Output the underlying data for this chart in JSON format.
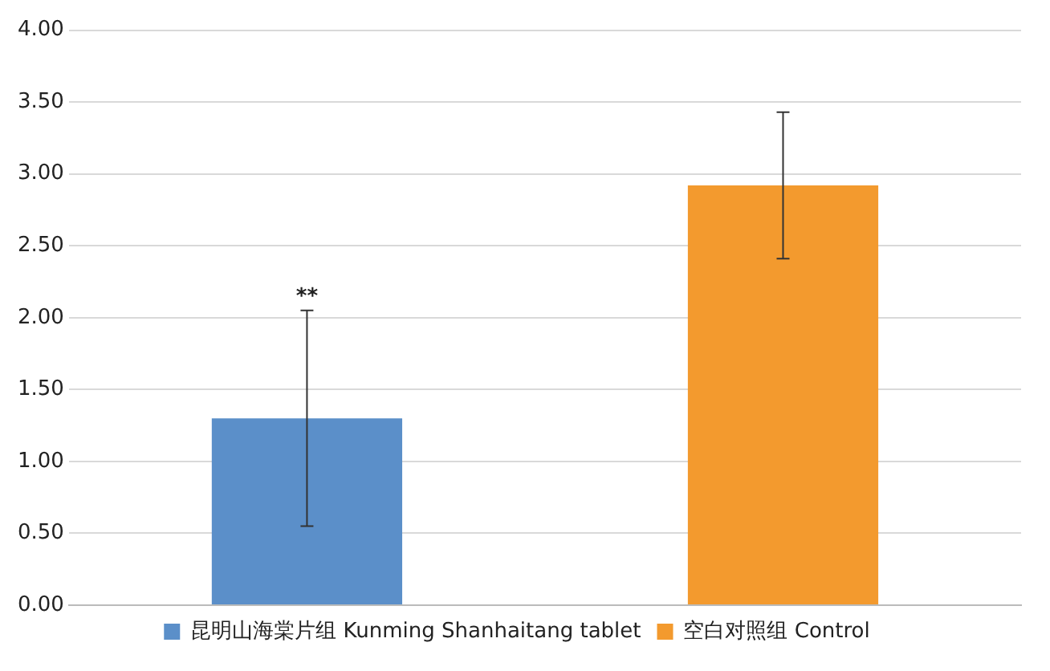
{
  "chart_data": {
    "type": "bar",
    "categories": [
      null
    ],
    "series": [
      {
        "name": "昆明山海棠片组 Kunming Shanhaitang tablet",
        "color": "#5b8fc9",
        "values": [
          1.3
        ],
        "errors": [
          0.75
        ]
      },
      {
        "name": "空白对照组 Control",
        "color": "#f39a2e",
        "values": [
          2.92
        ],
        "errors": [
          0.51
        ]
      }
    ],
    "ylim": [
      0,
      4
    ],
    "yticks": [
      {
        "value": 0,
        "label": "0.00"
      },
      {
        "value": 0.5,
        "label": "0.50"
      },
      {
        "value": 1,
        "label": "1.00"
      },
      {
        "value": 1.5,
        "label": "1.50"
      },
      {
        "value": 2,
        "label": "2.00"
      },
      {
        "value": 2.5,
        "label": "2.50"
      },
      {
        "value": 3,
        "label": "3.00"
      },
      {
        "value": 3.5,
        "label": "3.50"
      },
      {
        "value": 4,
        "label": "4.00"
      }
    ],
    "annotations": [
      "**"
    ],
    "grid": "y",
    "legend": "bottom"
  }
}
